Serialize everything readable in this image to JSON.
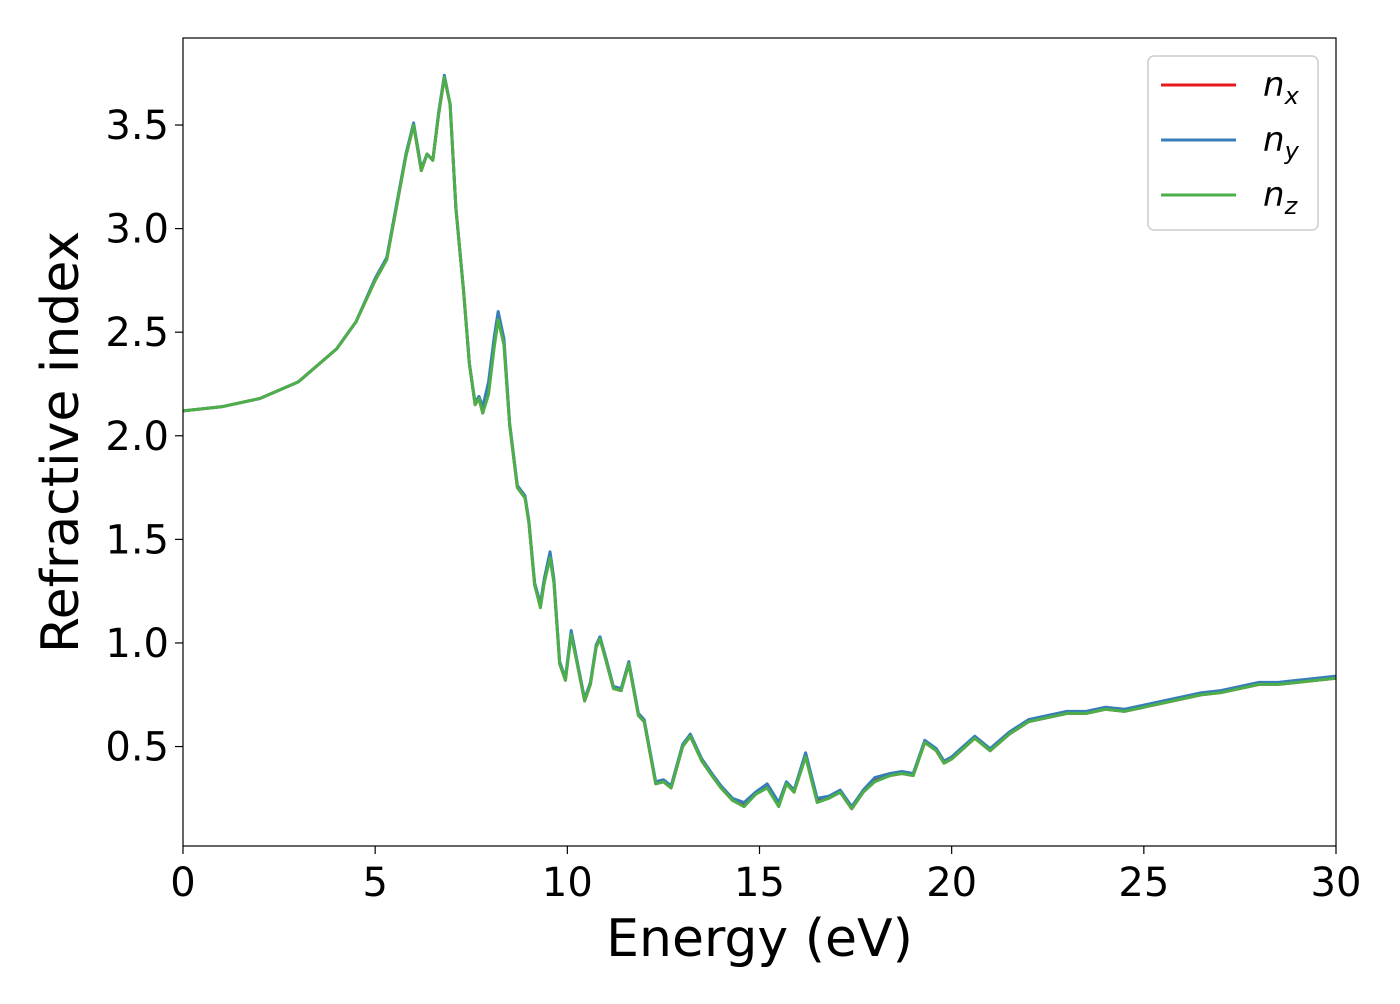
{
  "chart_data": {
    "type": "line",
    "title": "",
    "xlabel": "Energy (eV)",
    "ylabel": "Refractive index",
    "xlim": [
      0,
      30
    ],
    "ylim": [
      0.02,
      3.92
    ],
    "x_ticks": [
      0,
      5,
      10,
      15,
      20,
      25,
      30
    ],
    "x_tick_labels": [
      "0",
      "5",
      "10",
      "15",
      "20",
      "25",
      "30"
    ],
    "y_ticks": [
      0.5,
      1.0,
      1.5,
      2.0,
      2.5,
      3.0,
      3.5
    ],
    "y_tick_labels": [
      "0.5",
      "1.0",
      "1.5",
      "2.0",
      "2.5",
      "3.0",
      "3.5"
    ],
    "grid": false,
    "legend": {
      "position": "top-right",
      "entries": [
        {
          "base": "n",
          "sub": "x"
        },
        {
          "base": "n",
          "sub": "y"
        },
        {
          "base": "n",
          "sub": "z"
        }
      ]
    },
    "series": [
      {
        "name": "n_x",
        "color": "#e41a1c",
        "x": [
          0,
          1,
          2,
          3,
          4,
          4.5,
          5,
          5.3,
          5.6,
          5.8,
          6.0,
          6.2,
          6.35,
          6.5,
          6.65,
          6.8,
          6.95,
          7.1,
          7.3,
          7.45,
          7.6,
          7.7,
          7.8,
          7.95,
          8.1,
          8.2,
          8.35,
          8.5,
          8.7,
          8.9,
          9.0,
          9.15,
          9.3,
          9.4,
          9.55,
          9.65,
          9.8,
          9.95,
          10.1,
          10.3,
          10.45,
          10.6,
          10.75,
          10.85,
          11.0,
          11.2,
          11.4,
          11.6,
          11.7,
          11.85,
          12.0,
          12.3,
          12.5,
          12.7,
          13.0,
          13.2,
          13.5,
          13.8,
          14.0,
          14.3,
          14.6,
          14.9,
          15.2,
          15.5,
          15.7,
          15.9,
          16.2,
          16.5,
          16.8,
          17.1,
          17.4,
          17.7,
          18.0,
          18.4,
          18.7,
          19.0,
          19.3,
          19.6,
          19.8,
          20.0,
          20.3,
          20.6,
          21.0,
          21.5,
          22.0,
          22.5,
          23.0,
          23.5,
          24.0,
          24.5,
          25.0,
          25.5,
          26.0,
          26.5,
          27.0,
          27.5,
          28.0,
          28.5,
          29.0,
          29.5,
          30.0
        ],
        "y": [
          2.12,
          2.14,
          2.18,
          2.26,
          2.42,
          2.55,
          2.75,
          2.85,
          3.15,
          3.35,
          3.5,
          3.28,
          3.36,
          3.33,
          3.55,
          3.73,
          3.6,
          3.1,
          2.7,
          2.35,
          2.15,
          2.18,
          2.11,
          2.22,
          2.45,
          2.58,
          2.45,
          2.05,
          1.75,
          1.7,
          1.58,
          1.28,
          1.18,
          1.3,
          1.42,
          1.3,
          0.9,
          0.82,
          1.05,
          0.86,
          0.72,
          0.8,
          0.98,
          1.02,
          0.92,
          0.78,
          0.77,
          0.9,
          0.8,
          0.65,
          0.62,
          0.32,
          0.33,
          0.3,
          0.5,
          0.55,
          0.43,
          0.35,
          0.3,
          0.24,
          0.22,
          0.27,
          0.31,
          0.22,
          0.32,
          0.28,
          0.46,
          0.24,
          0.25,
          0.28,
          0.2,
          0.28,
          0.34,
          0.36,
          0.37,
          0.36,
          0.52,
          0.48,
          0.42,
          0.44,
          0.49,
          0.54,
          0.48,
          0.56,
          0.62,
          0.64,
          0.66,
          0.66,
          0.68,
          0.67,
          0.69,
          0.71,
          0.73,
          0.75,
          0.76,
          0.78,
          0.8,
          0.8,
          0.81,
          0.82,
          0.83
        ]
      },
      {
        "name": "n_y",
        "color": "#377eb8",
        "x": [
          0,
          1,
          2,
          3,
          4,
          4.5,
          5,
          5.3,
          5.6,
          5.8,
          6.0,
          6.2,
          6.35,
          6.5,
          6.65,
          6.8,
          6.95,
          7.1,
          7.3,
          7.45,
          7.6,
          7.7,
          7.8,
          7.95,
          8.1,
          8.2,
          8.35,
          8.5,
          8.7,
          8.9,
          9.0,
          9.15,
          9.3,
          9.4,
          9.55,
          9.65,
          9.8,
          9.95,
          10.1,
          10.3,
          10.45,
          10.6,
          10.75,
          10.85,
          11.0,
          11.2,
          11.4,
          11.6,
          11.7,
          11.85,
          12.0,
          12.3,
          12.5,
          12.7,
          13.0,
          13.2,
          13.5,
          13.8,
          14.0,
          14.3,
          14.6,
          14.9,
          15.2,
          15.5,
          15.7,
          15.9,
          16.2,
          16.5,
          16.8,
          17.1,
          17.4,
          17.7,
          18.0,
          18.4,
          18.7,
          19.0,
          19.3,
          19.6,
          19.8,
          20.0,
          20.3,
          20.6,
          21.0,
          21.5,
          22.0,
          22.5,
          23.0,
          23.5,
          24.0,
          24.5,
          25.0,
          25.5,
          26.0,
          26.5,
          27.0,
          27.5,
          28.0,
          28.5,
          29.0,
          29.5,
          30.0
        ],
        "y": [
          2.12,
          2.14,
          2.18,
          2.26,
          2.42,
          2.55,
          2.76,
          2.86,
          3.16,
          3.36,
          3.51,
          3.29,
          3.36,
          3.33,
          3.56,
          3.74,
          3.6,
          3.1,
          2.7,
          2.35,
          2.16,
          2.19,
          2.14,
          2.26,
          2.48,
          2.6,
          2.47,
          2.06,
          1.76,
          1.71,
          1.59,
          1.29,
          1.19,
          1.31,
          1.44,
          1.31,
          0.91,
          0.83,
          1.06,
          0.87,
          0.73,
          0.81,
          0.99,
          1.03,
          0.93,
          0.79,
          0.78,
          0.91,
          0.81,
          0.66,
          0.63,
          0.33,
          0.34,
          0.31,
          0.51,
          0.56,
          0.44,
          0.36,
          0.31,
          0.25,
          0.23,
          0.28,
          0.32,
          0.23,
          0.33,
          0.29,
          0.47,
          0.25,
          0.26,
          0.29,
          0.21,
          0.29,
          0.35,
          0.37,
          0.38,
          0.37,
          0.53,
          0.49,
          0.43,
          0.45,
          0.5,
          0.55,
          0.49,
          0.57,
          0.63,
          0.65,
          0.67,
          0.67,
          0.69,
          0.68,
          0.7,
          0.72,
          0.74,
          0.76,
          0.77,
          0.79,
          0.81,
          0.81,
          0.82,
          0.83,
          0.84
        ]
      },
      {
        "name": "n_z",
        "color": "#4daf4a",
        "x": [
          0,
          1,
          2,
          3,
          4,
          4.5,
          5,
          5.3,
          5.6,
          5.8,
          6.0,
          6.2,
          6.35,
          6.5,
          6.65,
          6.8,
          6.95,
          7.1,
          7.3,
          7.45,
          7.6,
          7.7,
          7.8,
          7.95,
          8.1,
          8.2,
          8.35,
          8.5,
          8.7,
          8.9,
          9.0,
          9.15,
          9.3,
          9.4,
          9.55,
          9.65,
          9.8,
          9.95,
          10.1,
          10.3,
          10.45,
          10.6,
          10.75,
          10.85,
          11.0,
          11.2,
          11.4,
          11.6,
          11.7,
          11.85,
          12.0,
          12.3,
          12.5,
          12.7,
          13.0,
          13.2,
          13.5,
          13.8,
          14.0,
          14.3,
          14.6,
          14.9,
          15.2,
          15.5,
          15.7,
          15.9,
          16.2,
          16.5,
          16.8,
          17.1,
          17.4,
          17.7,
          18.0,
          18.4,
          18.7,
          19.0,
          19.3,
          19.6,
          19.8,
          20.0,
          20.3,
          20.6,
          21.0,
          21.5,
          22.0,
          22.5,
          23.0,
          23.5,
          24.0,
          24.5,
          25.0,
          25.5,
          26.0,
          26.5,
          27.0,
          27.5,
          28.0,
          28.5,
          29.0,
          29.5,
          30.0
        ],
        "y": [
          2.12,
          2.14,
          2.18,
          2.26,
          2.42,
          2.55,
          2.75,
          2.85,
          3.15,
          3.35,
          3.5,
          3.28,
          3.36,
          3.33,
          3.55,
          3.73,
          3.6,
          3.1,
          2.7,
          2.35,
          2.15,
          2.18,
          2.11,
          2.2,
          2.43,
          2.56,
          2.44,
          2.05,
          1.75,
          1.7,
          1.58,
          1.28,
          1.17,
          1.29,
          1.41,
          1.29,
          0.9,
          0.82,
          1.04,
          0.86,
          0.72,
          0.8,
          0.98,
          1.02,
          0.92,
          0.78,
          0.77,
          0.9,
          0.8,
          0.65,
          0.62,
          0.32,
          0.33,
          0.3,
          0.5,
          0.55,
          0.43,
          0.35,
          0.3,
          0.24,
          0.21,
          0.27,
          0.3,
          0.21,
          0.32,
          0.28,
          0.45,
          0.23,
          0.25,
          0.28,
          0.2,
          0.28,
          0.33,
          0.36,
          0.37,
          0.36,
          0.52,
          0.48,
          0.42,
          0.44,
          0.49,
          0.54,
          0.48,
          0.56,
          0.62,
          0.64,
          0.66,
          0.66,
          0.68,
          0.67,
          0.69,
          0.71,
          0.73,
          0.75,
          0.76,
          0.78,
          0.8,
          0.8,
          0.81,
          0.82,
          0.83
        ]
      }
    ]
  }
}
